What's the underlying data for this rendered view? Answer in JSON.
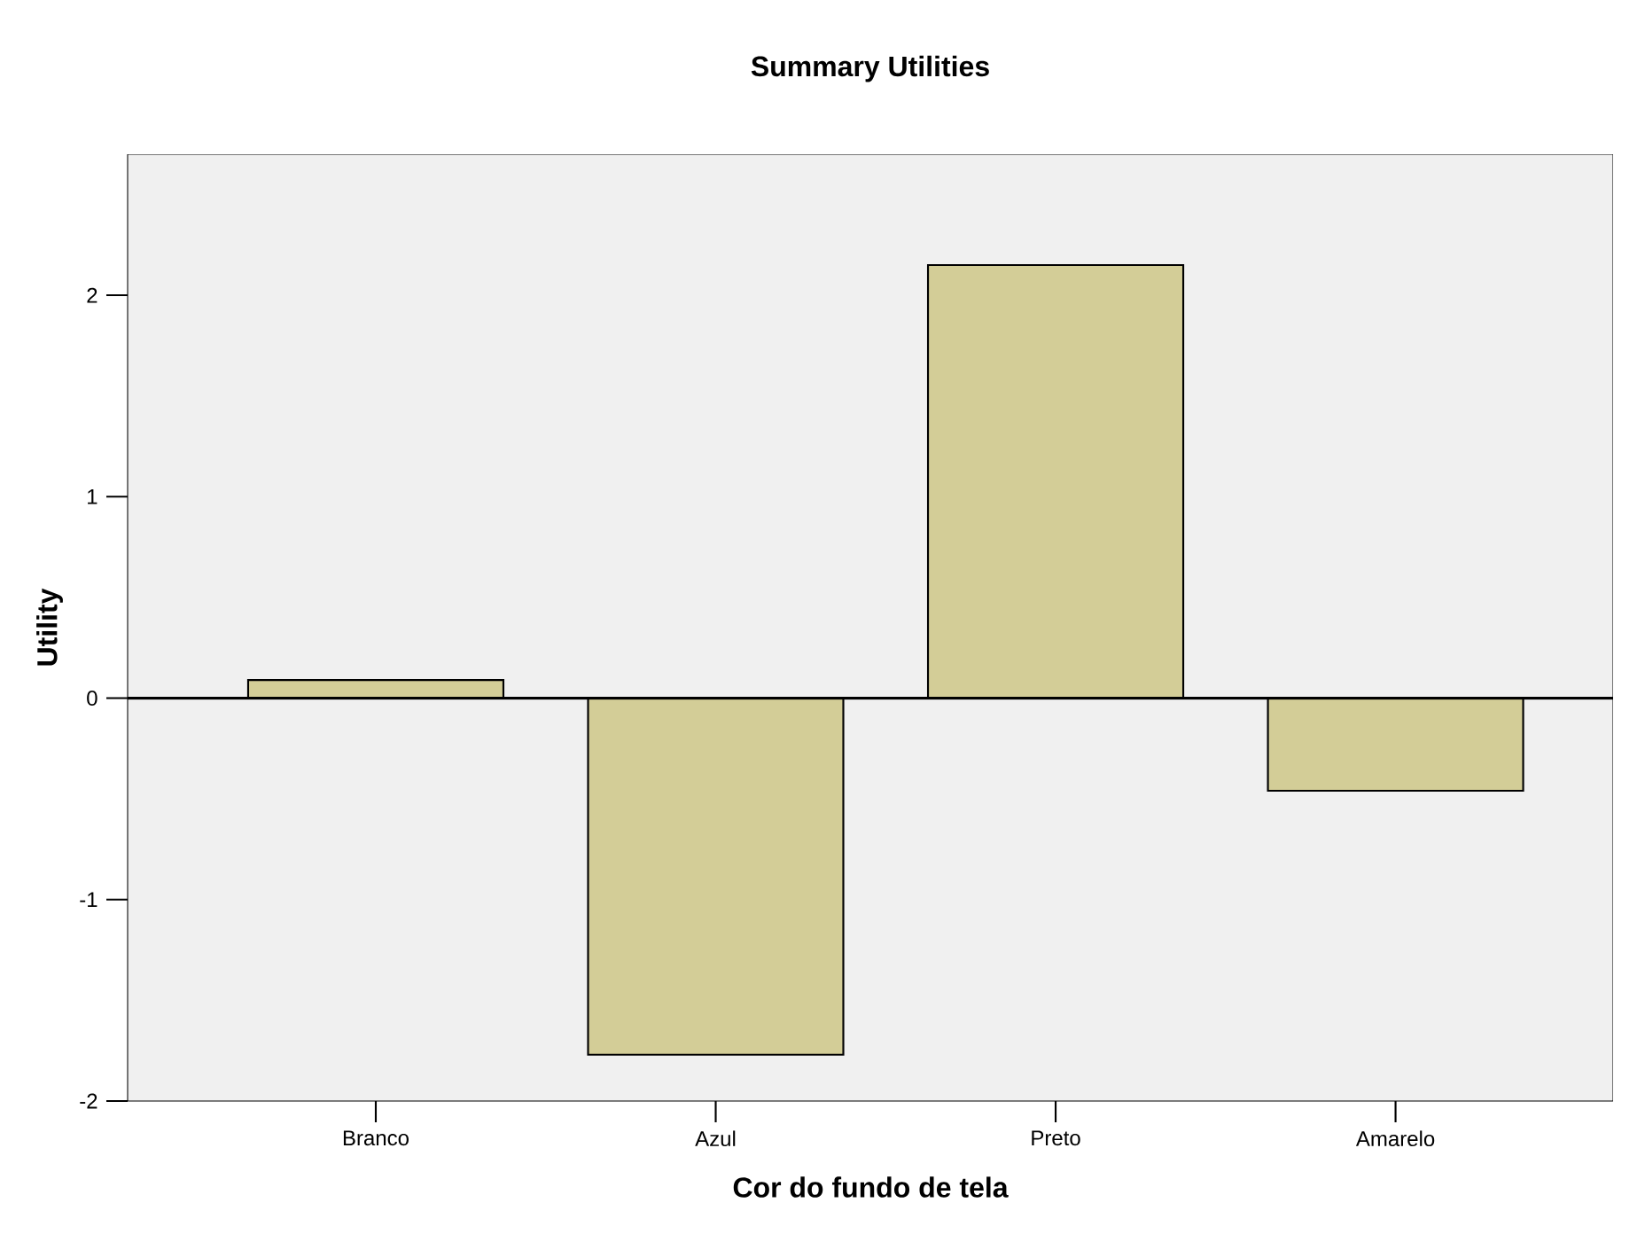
{
  "chart_data": {
    "type": "bar",
    "title": "Summary Utilities",
    "xlabel": "Cor do fundo de tela",
    "ylabel": "Utility",
    "categories": [
      "Branco",
      "Azul",
      "Preto",
      "Amarelo"
    ],
    "values": [
      0.09,
      -1.77,
      2.15,
      -0.46
    ],
    "color": "#d3cd97",
    "ylim": [
      -2,
      2.7
    ],
    "yticks": [
      -2,
      -1,
      0,
      1,
      2
    ],
    "ref_lines": [
      {
        "axis": "y",
        "value": 0,
        "color": "#000000"
      }
    ],
    "grid": false
  }
}
